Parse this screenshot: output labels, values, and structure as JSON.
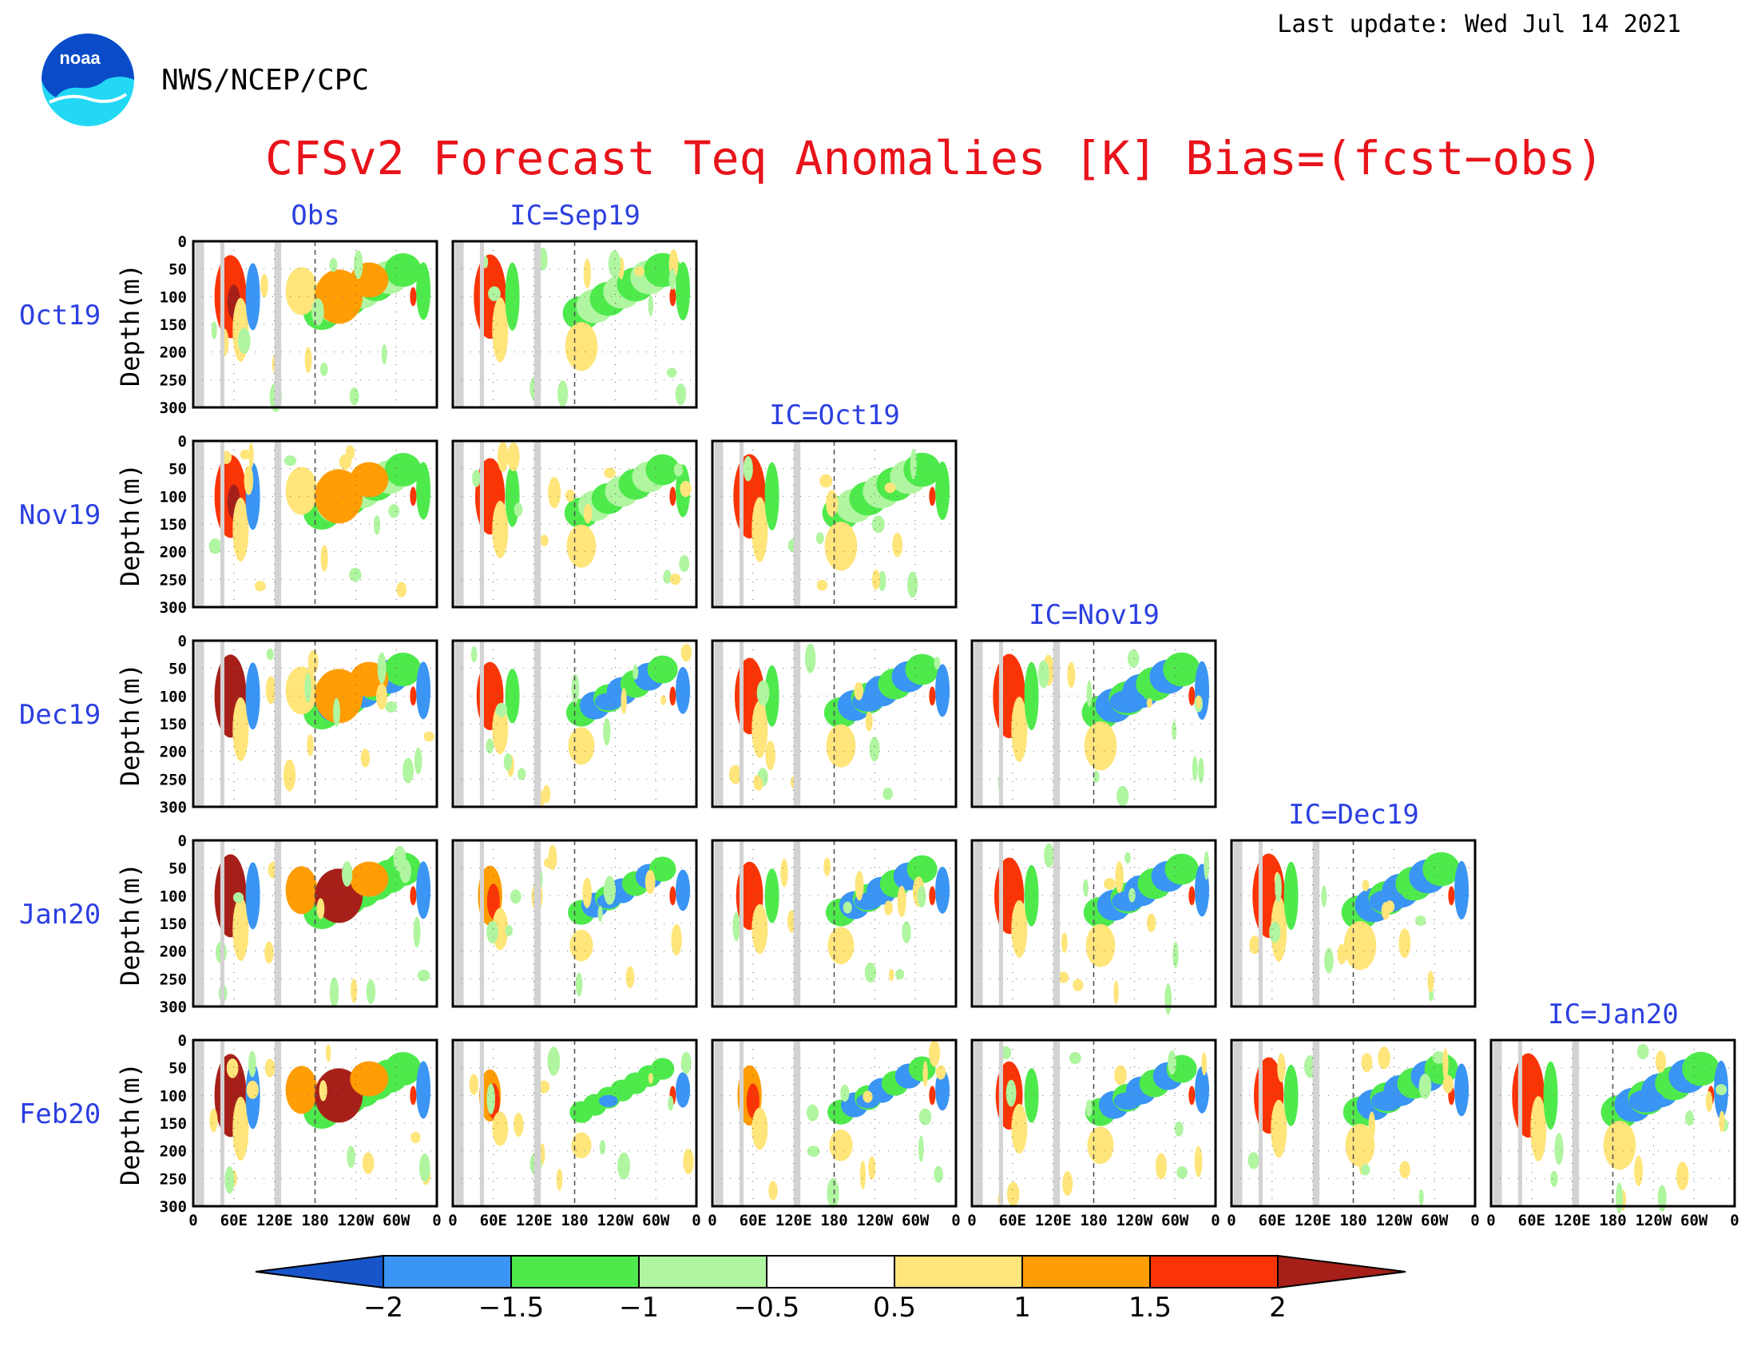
{
  "header": {
    "last_update": "Last update: Wed Jul 14 2021",
    "agency": "NWS/NCEP/CPC",
    "logo_text": "noaa"
  },
  "chart_data": {
    "type": "heatmap",
    "title": "CFSv2 Forecast Teq Anomalies [K] Bias=(fcst−obs)",
    "ylabel": "Depth(m)",
    "y_ticks": [
      "0",
      "50",
      "100",
      "150",
      "200",
      "250",
      "300"
    ],
    "y_range": [
      0,
      300
    ],
    "x_ticks": [
      "0",
      "60E",
      "120E",
      "180",
      "120W",
      "60W",
      "0"
    ],
    "x_range_lon": [
      0,
      360
    ],
    "row_labels": [
      "Oct19",
      "Nov19",
      "Dec19",
      "Jan20",
      "Feb20"
    ],
    "column_titles": [
      "Obs",
      "IC=Sep19",
      "IC=Oct19",
      "IC=Nov19",
      "IC=Dec19",
      "IC=Jan20"
    ],
    "land_masks_lon": [
      [
        3,
        16
      ],
      [
        40,
        46
      ],
      [
        120,
        130
      ]
    ],
    "colorbar": {
      "levels": [
        "−2",
        "−1.5",
        "−1",
        "−0.5",
        "0.5",
        "1",
        "1.5",
        "2"
      ],
      "colors": [
        "#1755c9",
        "#3a95f4",
        "#4eea4c",
        "#b0f5a0",
        "#ffffff",
        "#ffe57a",
        "#ff9d05",
        "#fb3406",
        "#a71f19"
      ]
    }
  },
  "colors": {
    "title": "#e8131b",
    "labels": "#2b3fe0",
    "land_mask": "#d3d3d3",
    "noaa_blue": "#0a4cc8",
    "noaa_cyan": "#22d8f4"
  }
}
